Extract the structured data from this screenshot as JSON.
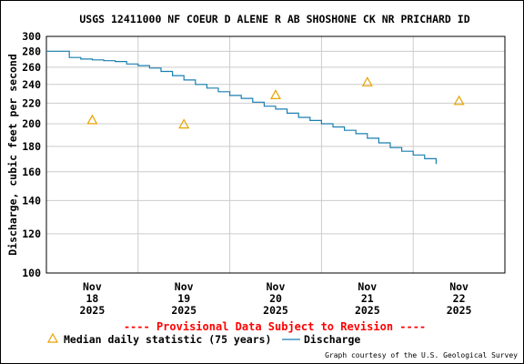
{
  "chart_data": {
    "type": "line",
    "title": "USGS 12411000 NF COEUR D ALENE R AB SHOSHONE CK NR PRICHARD ID",
    "ylabel": "Discharge, cubic feet per second",
    "xlabel": "",
    "y_scale": "log",
    "ylim": [
      100,
      300
    ],
    "y_ticks": [
      100,
      120,
      140,
      160,
      180,
      200,
      220,
      240,
      260,
      280,
      300
    ],
    "xlim": [
      "2025-11-17 12:00",
      "2025-11-22 12:00"
    ],
    "x_ticks": [
      {
        "at": "2025-11-18 00:00",
        "month": "Nov",
        "day": "18",
        "year": "2025"
      },
      {
        "at": "2025-11-19 00:00",
        "month": "Nov",
        "day": "19",
        "year": "2025"
      },
      {
        "at": "2025-11-20 00:00",
        "month": "Nov",
        "day": "20",
        "year": "2025"
      },
      {
        "at": "2025-11-21 00:00",
        "month": "Nov",
        "day": "21",
        "year": "2025"
      },
      {
        "at": "2025-11-22 00:00",
        "month": "Nov",
        "day": "22",
        "year": "2025"
      }
    ],
    "x_gridlines": [
      "2025-11-18 12:00",
      "2025-11-19 12:00",
      "2025-11-20 12:00",
      "2025-11-21 12:00"
    ],
    "grid": true,
    "series": [
      {
        "name": "Median daily statistic (75 years)",
        "marker": "triangle",
        "color": "#e8a200",
        "x": [
          "2025-11-18 00:00",
          "2025-11-19 00:00",
          "2025-11-20 00:00",
          "2025-11-21 00:00",
          "2025-11-22 00:00"
        ],
        "values": [
          203,
          199,
          228,
          242,
          222
        ]
      },
      {
        "name": "Discharge",
        "marker": "line",
        "color": "#1a7fb0",
        "x": [
          "2025-11-17 12:00",
          "2025-11-17 15:00",
          "2025-11-17 18:00",
          "2025-11-17 21:00",
          "2025-11-18 00:00",
          "2025-11-18 03:00",
          "2025-11-18 06:00",
          "2025-11-18 09:00",
          "2025-11-18 12:00",
          "2025-11-18 15:00",
          "2025-11-18 18:00",
          "2025-11-18 21:00",
          "2025-11-19 00:00",
          "2025-11-19 03:00",
          "2025-11-19 06:00",
          "2025-11-19 09:00",
          "2025-11-19 12:00",
          "2025-11-19 15:00",
          "2025-11-19 18:00",
          "2025-11-19 21:00",
          "2025-11-20 00:00",
          "2025-11-20 03:00",
          "2025-11-20 06:00",
          "2025-11-20 09:00",
          "2025-11-20 12:00",
          "2025-11-20 15:00",
          "2025-11-20 18:00",
          "2025-11-20 21:00",
          "2025-11-21 00:00",
          "2025-11-21 03:00",
          "2025-11-21 06:00",
          "2025-11-21 09:00",
          "2025-11-21 12:00",
          "2025-11-21 15:00",
          "2025-11-21 18:00"
        ],
        "values": [
          280,
          280,
          272,
          270,
          269,
          268,
          267,
          264,
          262,
          259,
          255,
          250,
          245,
          240,
          236,
          232,
          228,
          225,
          221,
          217,
          214,
          210,
          206,
          203,
          200,
          197,
          194,
          191,
          187,
          183,
          179,
          176,
          173,
          170,
          166
        ]
      }
    ],
    "provisional_note": "---- Provisional Data Subject to Revision ----",
    "credit": "Graph courtesy of the U.S. Geological Survey"
  }
}
